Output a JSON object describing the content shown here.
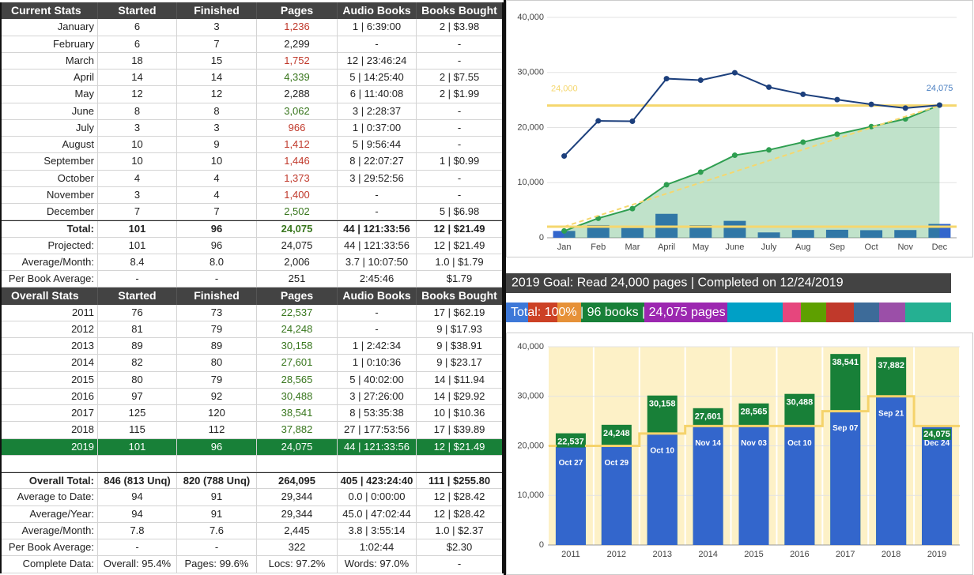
{
  "current": {
    "columns": [
      "Current Stats",
      "Started",
      "Finished",
      "Pages",
      "Audio Books",
      "Books Bought"
    ],
    "rows": [
      {
        "cells": [
          "January",
          "6",
          "3",
          "1,236",
          "1 | 6:39:00",
          "2 | $3.98"
        ],
        "pages_color": "#c0392b"
      },
      {
        "cells": [
          "February",
          "6",
          "7",
          "2,299",
          "-",
          "-"
        ]
      },
      {
        "cells": [
          "March",
          "18",
          "15",
          "1,752",
          "12 | 23:46:24",
          "-"
        ],
        "pages_color": "#c0392b"
      },
      {
        "cells": [
          "April",
          "14",
          "14",
          "4,339",
          "5 | 14:25:40",
          "2 | $7.55"
        ],
        "pages_color": "#38761d"
      },
      {
        "cells": [
          "May",
          "12",
          "12",
          "2,288",
          "6 | 11:40:08",
          "2 | $1.99"
        ]
      },
      {
        "cells": [
          "June",
          "8",
          "8",
          "3,062",
          "3 | 2:28:37",
          "-"
        ],
        "pages_color": "#38761d"
      },
      {
        "cells": [
          "July",
          "3",
          "3",
          "966",
          "1 | 0:37:00",
          "-"
        ],
        "pages_color": "#c0392b"
      },
      {
        "cells": [
          "August",
          "10",
          "9",
          "1,412",
          "5 | 9:56:44",
          "-"
        ],
        "pages_color": "#c0392b"
      },
      {
        "cells": [
          "September",
          "10",
          "10",
          "1,446",
          "8 | 22:07:27",
          "1 | $0.99"
        ],
        "pages_color": "#c0392b"
      },
      {
        "cells": [
          "October",
          "4",
          "4",
          "1,373",
          "3 | 29:52:56",
          "-"
        ],
        "pages_color": "#c0392b"
      },
      {
        "cells": [
          "November",
          "3",
          "4",
          "1,400",
          "-",
          "-"
        ],
        "pages_color": "#c0392b"
      },
      {
        "cells": [
          "December",
          "7",
          "7",
          "2,502",
          "-",
          "5 | $6.98"
        ],
        "pages_color": "#38761d"
      },
      {
        "cells": [
          "Total:",
          "101",
          "96",
          "24,075",
          "44 | 121:33:56",
          "12 | $21.49"
        ],
        "style": "total",
        "pages_color": "#38761d"
      },
      {
        "cells": [
          "Projected:",
          "101",
          "96",
          "24,075",
          "44 | 121:33:56",
          "12 | $21.49"
        ]
      },
      {
        "cells": [
          "Average/Month:",
          "8.4",
          "8.0",
          "2,006",
          "3.7 | 10:07:50",
          "1.0 | $1.79"
        ]
      },
      {
        "cells": [
          "Per Book Average:",
          "-",
          "-",
          "251",
          "2:45:46",
          "$1.79"
        ]
      }
    ]
  },
  "overall": {
    "columns": [
      "Overall Stats",
      "Started",
      "Finished",
      "Pages",
      "Audio Books",
      "Books Bought"
    ],
    "rows": [
      {
        "cells": [
          "2011",
          "76",
          "73",
          "22,537",
          "-",
          "17 | $62.19"
        ],
        "pages_color": "#38761d"
      },
      {
        "cells": [
          "2012",
          "81",
          "79",
          "24,248",
          "-",
          "9 | $17.93"
        ],
        "pages_color": "#38761d"
      },
      {
        "cells": [
          "2013",
          "89",
          "89",
          "30,158",
          "1 | 2:42:34",
          "9 | $38.91"
        ],
        "pages_color": "#38761d"
      },
      {
        "cells": [
          "2014",
          "82",
          "80",
          "27,601",
          "1 | 0:10:36",
          "9 | $23.17"
        ],
        "pages_color": "#38761d"
      },
      {
        "cells": [
          "2015",
          "80",
          "79",
          "28,565",
          "5 | 40:02:00",
          "14 | $11.94"
        ],
        "pages_color": "#38761d"
      },
      {
        "cells": [
          "2016",
          "97",
          "92",
          "30,488",
          "3 | 27:26:00",
          "14 | $29.92"
        ],
        "pages_color": "#38761d"
      },
      {
        "cells": [
          "2017",
          "125",
          "120",
          "38,541",
          "8 | 53:35:38",
          "10 | $10.36"
        ],
        "pages_color": "#38761d"
      },
      {
        "cells": [
          "2018",
          "115",
          "112",
          "37,882",
          "27 | 177:53:56",
          "17 | $39.89"
        ],
        "pages_color": "#38761d"
      },
      {
        "cells": [
          "2019",
          "101",
          "96",
          "24,075",
          "44 | 121:33:56",
          "12 | $21.49"
        ],
        "style": "highlight"
      },
      {
        "cells": []
      },
      {
        "cells": [
          "Overall Total:",
          "846 (813 Unq)",
          "820 (788 Unq)",
          "264,095",
          "405 | 423:24:40",
          "111 | $255.80"
        ],
        "style": "total"
      },
      {
        "cells": [
          "Average to Date:",
          "94",
          "91",
          "29,344",
          "0.0 | 0:00:00",
          "12 | $28.42"
        ]
      },
      {
        "cells": [
          "Average/Year:",
          "94",
          "91",
          "29,344",
          "45.0 | 47:02:44",
          "12 | $28.42"
        ]
      },
      {
        "cells": [
          "Average/Month:",
          "7.8",
          "7.6",
          "2,445",
          "3.8 | 3:55:14",
          "1.0 | $2.37"
        ]
      },
      {
        "cells": [
          "Per Book Average:",
          "-",
          "-",
          "322",
          "1:02:44",
          "$2.30"
        ]
      },
      {
        "cells": [
          "Complete Data:",
          "Overall: 95.4%",
          "Pages: 99.6%",
          "Locs: 97.2%",
          "Words: 97.0%",
          "-"
        ]
      }
    ]
  },
  "monthly_chart": {
    "type": "combo",
    "categories": [
      "Jan",
      "Feb",
      "Mar",
      "April",
      "May",
      "June",
      "July",
      "Aug",
      "Sep",
      "Oct",
      "Nov",
      "Dec"
    ],
    "ylim": [
      0,
      40000
    ],
    "yticks": [
      {
        "value": 0,
        "label": "0"
      },
      {
        "value": 10000,
        "label": "10,000"
      },
      {
        "value": 20000,
        "label": "20,000"
      },
      {
        "value": 30000,
        "label": "30,000"
      },
      {
        "value": 40000,
        "label": "40,000"
      }
    ],
    "grid": true,
    "series": [
      {
        "type": "bar",
        "color": "#3366cc",
        "values": [
          1236,
          2299,
          1752,
          4339,
          2288,
          3062,
          966,
          1412,
          1446,
          1373,
          1400,
          2502
        ]
      },
      {
        "type": "area",
        "color": "#2e9e50",
        "values": [
          1236,
          3535,
          5287,
          9626,
          11914,
          14976,
          15942,
          17354,
          18800,
          20173,
          21573,
          24075
        ]
      },
      {
        "type": "dashed",
        "color": "#f5d76e",
        "values": [
          2000,
          4000,
          6000,
          8000,
          10000,
          12000,
          14000,
          16000,
          18000,
          20000,
          22000,
          24000
        ]
      },
      {
        "type": "line",
        "color": "#1c3f7c",
        "values": [
          14832,
          21210,
          21148,
          28878,
          28594,
          29952,
          27329,
          26031,
          25067,
          24208,
          23534,
          24075
        ],
        "value_labels": [
          null,
          null,
          null,
          null,
          null,
          null,
          null,
          null,
          null,
          null,
          null,
          "24,075"
        ]
      }
    ],
    "reference_lines": [
      {
        "value": 24000,
        "label": "24,000",
        "color": "#f5d76e"
      },
      {
        "value": 2000,
        "color": "#f5d76e"
      }
    ]
  },
  "banners": {
    "goal": "2019 Goal: Read 24,000 pages | Completed on 12/24/2019",
    "progress": "Total: 100% | 96 books | 24,075 pages"
  },
  "yearly_chart": {
    "type": "bar",
    "categories": [
      "2011",
      "2012",
      "2013",
      "2014",
      "2015",
      "2016",
      "2017",
      "2018",
      "2019"
    ],
    "ylim": [
      0,
      40000
    ],
    "yticks": [
      {
        "value": 0,
        "label": "0"
      },
      {
        "value": 10000,
        "label": "10,000"
      },
      {
        "value": 20000,
        "label": "20,000"
      },
      {
        "value": 30000,
        "label": "30,000"
      },
      {
        "value": 40000,
        "label": "40,000"
      }
    ],
    "grid": true,
    "series": [
      {
        "color": "#188038",
        "values": [
          22537,
          24248,
          30158,
          27601,
          28565,
          30488,
          38541,
          37882,
          24075
        ],
        "value_labels": [
          "22,537",
          "24,248",
          "30,158",
          "27,601",
          "28,565",
          "30,488",
          "38,541",
          "37,882",
          "24,075"
        ]
      },
      {
        "color": "#3366cc",
        "step_color": "#f5d36b",
        "values": [
          20000,
          20000,
          22500,
          24000,
          24000,
          24000,
          27000,
          30000,
          24000
        ],
        "date_labels": [
          "Oct 27",
          "Oct 29",
          "Oct 10",
          "Nov 14",
          "Nov 03",
          "Oct 10",
          "Sep 07",
          "Sep 21",
          "Dec 24"
        ]
      }
    ],
    "band_color": "#fdf1c7"
  }
}
